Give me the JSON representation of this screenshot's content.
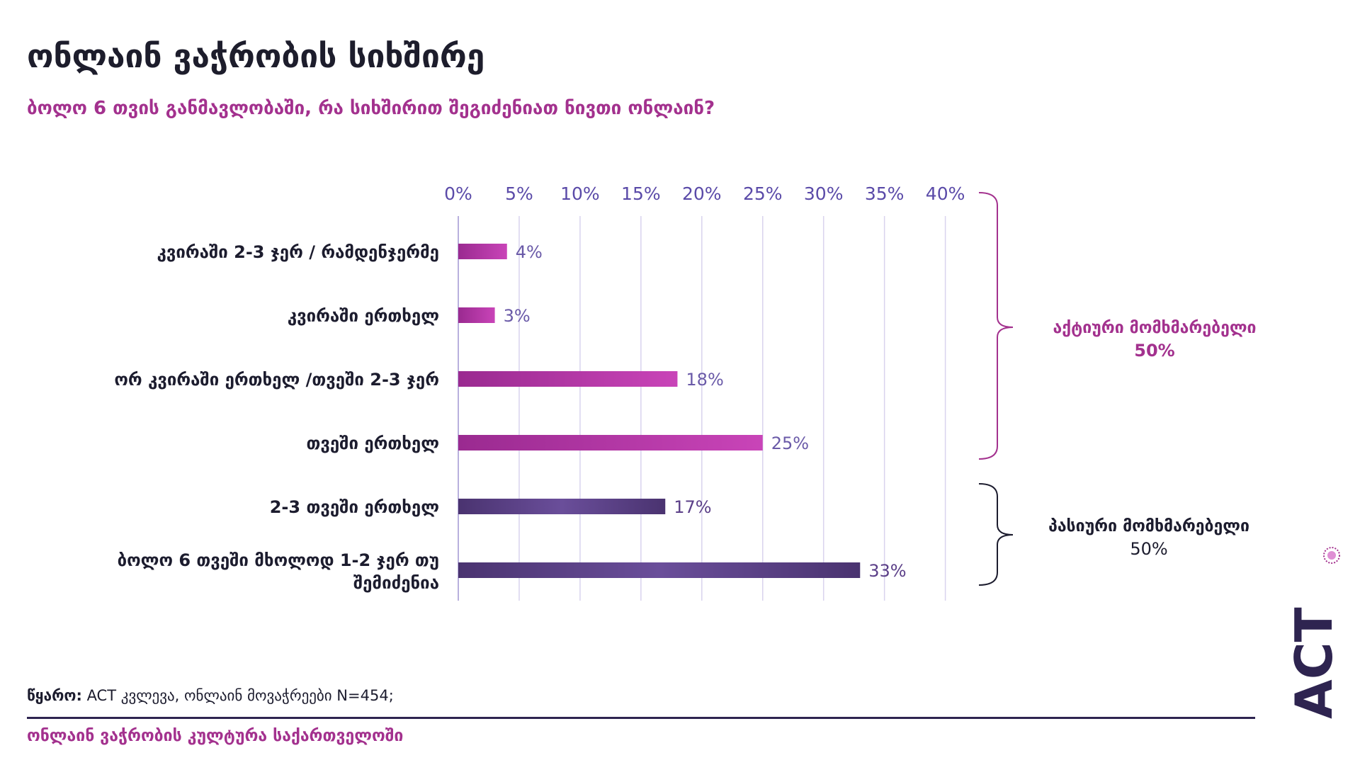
{
  "title": "ონლაინ ვაჭრობის სიხშირე",
  "subtitle": "ბოლო 6 თვის განმავლობაში, რა სიხშირით შეგიძენიათ ნივთი ონლაინ?",
  "source": {
    "label": "წყარო:",
    "text": "ACT კვლევა, ონლაინ მოვაჭრეები N=454;"
  },
  "footer": "ონლაინ ვაჭრობის კულტურა საქართველოში",
  "logo": {
    "text": "ACT"
  },
  "colors": {
    "active": "#b23aa6",
    "passive": "#5b3f88",
    "axis": "#5a4aa8",
    "grid": "#d9d3ee",
    "accent": "#a3318e"
  },
  "chart_data": {
    "type": "bar",
    "orientation": "horizontal",
    "x_ticks": [
      "0%",
      "5%",
      "10%",
      "15%",
      "20%",
      "25%",
      "30%",
      "35%",
      "40%"
    ],
    "xlim": [
      0,
      40
    ],
    "grid": true,
    "categories": [
      [
        "კვირაში 2-3 ჯერ / რამდენჯერმე"
      ],
      [
        "კვირაში ერთხელ"
      ],
      [
        "ორ კვირაში ერთხელ /თვეში 2-3 ჯერ"
      ],
      [
        "თვეში ერთხელ"
      ],
      [
        "2-3 თვეში ერთხელ"
      ],
      [
        "ბოლო 6 თვეში მხოლოდ 1-2 ჯერ თუ",
        "შემიძენია"
      ]
    ],
    "values": [
      4,
      3,
      18,
      25,
      17,
      33
    ],
    "value_labels": [
      "4%",
      "3%",
      "18%",
      "25%",
      "17%",
      "33%"
    ],
    "groups": [
      {
        "label": "აქტიური მომხმარებელი",
        "value_label": "50%",
        "rows": [
          0,
          1,
          2,
          3
        ]
      },
      {
        "label": "პასიური მომხმარებელი",
        "value_label": "50%",
        "rows": [
          4,
          5
        ]
      }
    ]
  }
}
